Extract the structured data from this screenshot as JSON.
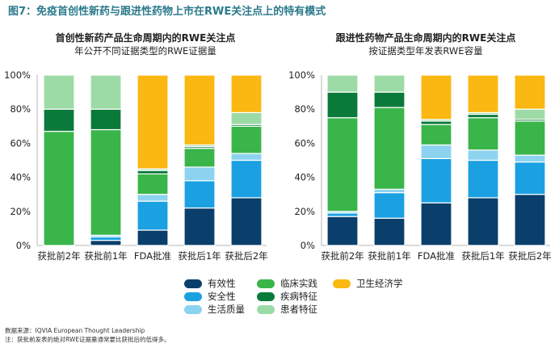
{
  "figure": {
    "title": "图7：免疫首创性新药与跟进性药物上市在RWE关注点上的特有模式"
  },
  "legend": {
    "items": [
      {
        "label": "有效性",
        "color": "#0a3f6b"
      },
      {
        "label": "安全性",
        "color": "#1ba1e2"
      },
      {
        "label": "生活质量",
        "color": "#8cd3f0"
      },
      {
        "label": "临床实践",
        "color": "#3ab54a"
      },
      {
        "label": "疾病特征",
        "color": "#0a7a3a"
      },
      {
        "label": "患者特征",
        "color": "#9ddba6"
      },
      {
        "label": "卫生经济学",
        "color": "#fbb712"
      }
    ]
  },
  "footnotes": {
    "source": "数据来源：IQVIA European Thought Leadership",
    "note": "注：获批前发表的绝对RWE证据量通常要比获批后的低得多。"
  },
  "chart_data": [
    {
      "type": "bar",
      "stacked": true,
      "title": "首创性新药产品生命周期内的RWE关注点",
      "subtitle": "年公开不同证据类型的RWE证据量",
      "categories": [
        "获批前2年",
        "获批前1年",
        "FDA批准",
        "获批后1年",
        "获批后2年"
      ],
      "yticks": [
        "0%",
        "20%",
        "40%",
        "60%",
        "80%",
        "100%"
      ],
      "ylim": [
        0,
        100
      ],
      "grid": false,
      "series": [
        {
          "name": "有效性",
          "values": [
            0,
            3,
            9,
            22,
            28
          ]
        },
        {
          "name": "安全性",
          "values": [
            0,
            2,
            17,
            16,
            22
          ]
        },
        {
          "name": "生活质量",
          "values": [
            0,
            1,
            4,
            8,
            4
          ]
        },
        {
          "name": "临床实践",
          "values": [
            67,
            62,
            12,
            11,
            16
          ]
        },
        {
          "name": "疾病特征",
          "values": [
            13,
            12,
            2,
            1,
            1
          ]
        },
        {
          "name": "患者特征",
          "values": [
            20,
            20,
            1,
            1,
            7
          ]
        },
        {
          "name": "卫生经济学",
          "values": [
            0,
            0,
            55,
            41,
            22
          ]
        }
      ]
    },
    {
      "type": "bar",
      "stacked": true,
      "title": "跟进性药物产品生命周期内的RWE关注点",
      "subtitle": "按证据类型年发表RWE容量",
      "categories": [
        "获批前2年",
        "获批前1年",
        "FDA批准",
        "获批后1年",
        "获批后2年"
      ],
      "yticks": [
        "0%",
        "20%",
        "40%",
        "60%",
        "80%",
        "100%"
      ],
      "ylim": [
        0,
        100
      ],
      "grid": false,
      "series": [
        {
          "name": "有效性",
          "values": [
            17,
            16,
            25,
            28,
            30
          ]
        },
        {
          "name": "安全性",
          "values": [
            2,
            15,
            26,
            22,
            19
          ]
        },
        {
          "name": "生活质量",
          "values": [
            1,
            2,
            8,
            6,
            4
          ]
        },
        {
          "name": "临床实践",
          "values": [
            55,
            48,
            12,
            19,
            20
          ]
        },
        {
          "name": "疾病特征",
          "values": [
            15,
            9,
            2,
            2,
            1
          ]
        },
        {
          "name": "患者特征",
          "values": [
            10,
            10,
            1,
            1,
            6
          ]
        },
        {
          "name": "卫生经济学",
          "values": [
            0,
            0,
            26,
            22,
            20
          ]
        }
      ]
    }
  ]
}
